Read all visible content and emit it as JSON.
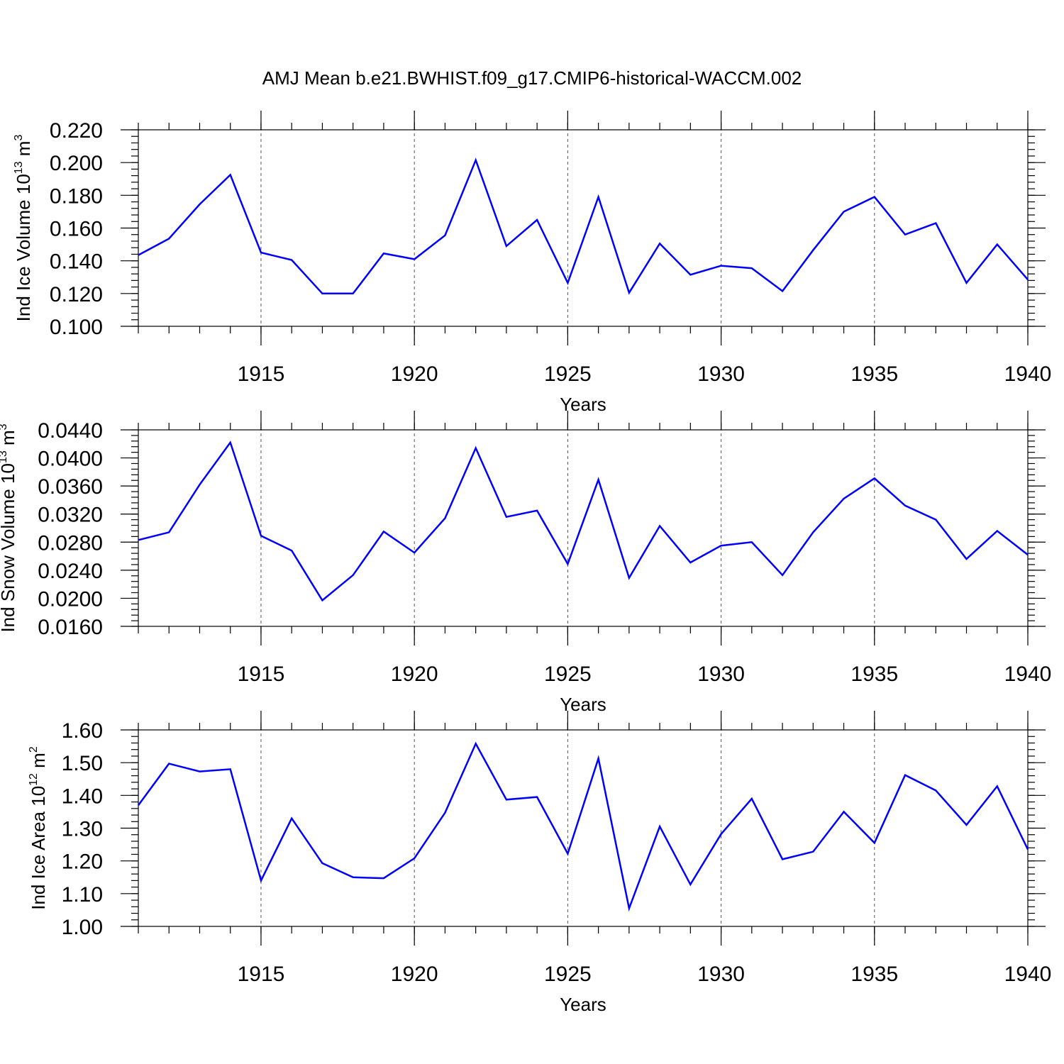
{
  "title": "AMJ Mean b.e21.BWHIST.f09_g17.CMIP6-historical-WACCM.002",
  "colors": {
    "line": "#0000ff",
    "grid": "#555555",
    "axis": "#000000"
  },
  "chart_data": [
    {
      "type": "line",
      "title": "AMJ Mean b.e21.BWHIST.f09_g17.CMIP6-historical-WACCM.002",
      "ylabel": {
        "base": "Ind Ice Volume 10",
        "exp": "13",
        "unit": " m",
        "unit_exp": "3"
      },
      "xlabel": "Years",
      "xlim": [
        1911,
        1940
      ],
      "ylim": [
        0.1,
        0.22
      ],
      "grid": "vertical dashed at major x ticks",
      "x_ticks": [
        1915,
        1920,
        1925,
        1930,
        1935,
        1940
      ],
      "x_tick_labels": [
        "1915",
        "1920",
        "1925",
        "1930",
        "1935",
        "1940"
      ],
      "y_ticks": [
        0.1,
        0.12,
        0.14,
        0.16,
        0.18,
        0.2,
        0.22
      ],
      "y_tick_labels": [
        "0.100",
        "0.120",
        "0.140",
        "0.160",
        "0.180",
        "0.200",
        "0.220"
      ],
      "y_minor_step": 0.004,
      "x": [
        1911,
        1912,
        1913,
        1914,
        1915,
        1916,
        1917,
        1918,
        1919,
        1920,
        1921,
        1922,
        1923,
        1924,
        1925,
        1926,
        1927,
        1928,
        1929,
        1930,
        1931,
        1932,
        1933,
        1934,
        1935,
        1936,
        1937,
        1938,
        1939,
        1940
      ],
      "series": [
        {
          "name": "Ind Ice Volume",
          "values": [
            0.1435,
            0.1535,
            0.1745,
            0.1925,
            0.145,
            0.1405,
            0.12,
            0.12,
            0.1445,
            0.141,
            0.1555,
            0.2015,
            0.149,
            0.165,
            0.1265,
            0.179,
            0.1205,
            0.1505,
            0.1315,
            0.137,
            0.1355,
            0.1215,
            0.1465,
            0.17,
            0.179,
            0.156,
            0.163,
            0.1265,
            0.15,
            0.1285
          ]
        }
      ]
    },
    {
      "type": "line",
      "ylabel": {
        "base": "Ind Snow Volume 10",
        "exp": "13",
        "unit": " m",
        "unit_exp": "3"
      },
      "xlabel": "Years",
      "xlim": [
        1911,
        1940
      ],
      "ylim": [
        0.016,
        0.044
      ],
      "grid": "vertical dashed at major x ticks",
      "x_ticks": [
        1915,
        1920,
        1925,
        1930,
        1935,
        1940
      ],
      "x_tick_labels": [
        "1915",
        "1920",
        "1925",
        "1930",
        "1935",
        "1940"
      ],
      "y_ticks": [
        0.016,
        0.02,
        0.024,
        0.028,
        0.032,
        0.036,
        0.04,
        0.044
      ],
      "y_tick_labels": [
        "0.0160",
        "0.0200",
        "0.0240",
        "0.0280",
        "0.0320",
        "0.0360",
        "0.0400",
        "0.0440"
      ],
      "y_minor_step": 0.0008,
      "x": [
        1911,
        1912,
        1913,
        1914,
        1915,
        1916,
        1917,
        1918,
        1919,
        1920,
        1921,
        1922,
        1923,
        1924,
        1925,
        1926,
        1927,
        1928,
        1929,
        1930,
        1931,
        1932,
        1933,
        1934,
        1935,
        1936,
        1937,
        1938,
        1939,
        1940
      ],
      "series": [
        {
          "name": "Ind Snow Volume",
          "values": [
            0.0283,
            0.0294,
            0.0362,
            0.0422,
            0.0289,
            0.0268,
            0.0197,
            0.0233,
            0.0295,
            0.0265,
            0.0314,
            0.0414,
            0.0316,
            0.0325,
            0.0249,
            0.0369,
            0.0229,
            0.0303,
            0.0251,
            0.0275,
            0.028,
            0.0233,
            0.0294,
            0.0342,
            0.0371,
            0.0332,
            0.0312,
            0.0256,
            0.0296,
            0.0262
          ]
        }
      ]
    },
    {
      "type": "line",
      "ylabel": {
        "base": "Ind Ice Area 10",
        "exp": "12",
        "unit": " m",
        "unit_exp": "2"
      },
      "xlabel": "Years",
      "xlim": [
        1911,
        1940
      ],
      "ylim": [
        1.0,
        1.6
      ],
      "grid": "vertical dashed at major x ticks",
      "x_ticks": [
        1915,
        1920,
        1925,
        1930,
        1935,
        1940
      ],
      "x_tick_labels": [
        "1915",
        "1920",
        "1925",
        "1930",
        "1935",
        "1940"
      ],
      "y_ticks": [
        1.0,
        1.1,
        1.2,
        1.3,
        1.4,
        1.5,
        1.6
      ],
      "y_tick_labels": [
        "1.00",
        "1.10",
        "1.20",
        "1.30",
        "1.40",
        "1.50",
        "1.60"
      ],
      "y_minor_step": 0.02,
      "x": [
        1911,
        1912,
        1913,
        1914,
        1915,
        1916,
        1917,
        1918,
        1919,
        1920,
        1921,
        1922,
        1923,
        1924,
        1925,
        1926,
        1927,
        1928,
        1929,
        1930,
        1931,
        1932,
        1933,
        1934,
        1935,
        1936,
        1937,
        1938,
        1939,
        1940
      ],
      "series": [
        {
          "name": "Ind Ice Area",
          "values": [
            1.37,
            1.497,
            1.473,
            1.48,
            1.14,
            1.33,
            1.193,
            1.15,
            1.147,
            1.208,
            1.347,
            1.558,
            1.387,
            1.395,
            1.222,
            1.513,
            1.055,
            1.305,
            1.128,
            1.282,
            1.39,
            1.205,
            1.228,
            1.35,
            1.255,
            1.462,
            1.415,
            1.31,
            1.428,
            1.235
          ]
        }
      ]
    }
  ]
}
